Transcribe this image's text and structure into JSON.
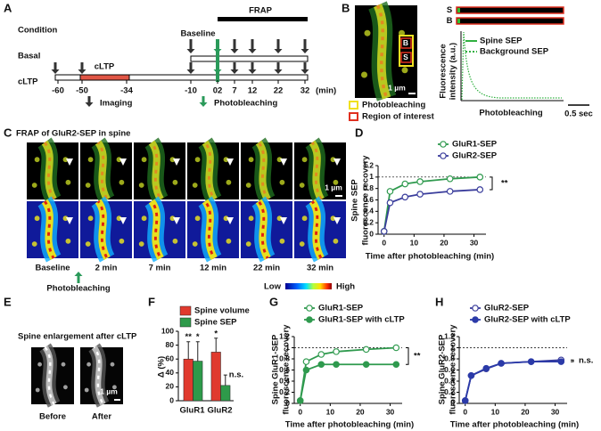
{
  "panel_labels": [
    "A",
    "B",
    "C",
    "D",
    "E",
    "F",
    "G",
    "H"
  ],
  "timeline": {
    "row_labels": [
      "Condition",
      "Basal",
      "cLTP"
    ],
    "baseline": "Baseline",
    "frap": "FRAP",
    "treatment": "cLTP",
    "ticks": [
      "-60",
      "-50",
      "-34",
      "-10",
      "02",
      "7",
      "12",
      "22",
      "32"
    ],
    "unit": "(min)",
    "legend": [
      "Imaging",
      "Photobleaching"
    ]
  },
  "panel_b": {
    "roi_labels": [
      "B",
      "S"
    ],
    "scale": "1 µm",
    "legend": [
      "Photobleaching",
      "Region of interest"
    ],
    "kymo_labels": [
      "S",
      "B"
    ],
    "trace": {
      "y_label": [
        "Fluorescence",
        "intensity (a.u.)"
      ],
      "legend": [
        "Spine SEP",
        "Background SEP"
      ],
      "x_label": "Photobleaching",
      "scale": "0.5 sec"
    }
  },
  "panel_c": {
    "title": "FRAP of GluR2-SEP in spine",
    "times": [
      "Baseline",
      "2 min",
      "7 min",
      "12 min",
      "22 min",
      "32 min"
    ],
    "event": "Photobleaching",
    "scale": "1 µm",
    "colorbar": [
      "Low",
      "High"
    ]
  },
  "panel_e": {
    "title": "Spine enlargement after cLTP",
    "labels": [
      "Before",
      "After"
    ],
    "scale": "1 µm"
  },
  "chart_data": [
    {
      "type": "line",
      "y_label": [
        "Spine SEP",
        "fluorescence recovery"
      ],
      "x_label": "Time after photobleaching (min)",
      "x": [
        0,
        2,
        7,
        12,
        22,
        32
      ],
      "xlim": [
        -2,
        34
      ],
      "xticks": [
        0,
        10,
        20,
        30
      ],
      "ylim": [
        0,
        1.2
      ],
      "yticks": [
        0,
        0.2,
        0.4,
        0.6,
        0.8,
        1,
        1.2
      ],
      "reference_line": 1,
      "annotation": "**",
      "series": [
        {
          "name": "GluR1-SEP",
          "color": "#2f9a4e",
          "marker": "open",
          "values": [
            0.05,
            0.75,
            0.88,
            0.92,
            0.97,
            1.0
          ]
        },
        {
          "name": "GluR2-SEP",
          "color": "#3a3d9c",
          "marker": "open",
          "values": [
            0.05,
            0.55,
            0.65,
            0.7,
            0.75,
            0.78
          ]
        }
      ]
    },
    {
      "type": "bar",
      "y_label": "Δ (%)",
      "categories": [
        "GluR1",
        "GluR2"
      ],
      "ylim": [
        0,
        100
      ],
      "yticks": [
        0,
        20,
        40,
        60,
        80,
        100
      ],
      "series": [
        {
          "name": "Spine volume",
          "color": "#e03a2e",
          "values": [
            60,
            70
          ],
          "errors": [
            25,
            20
          ],
          "annotations": [
            "**",
            "*"
          ]
        },
        {
          "name": "Spine SEP",
          "color": "#2e9a4a",
          "values": [
            57,
            22
          ],
          "errors": [
            28,
            15
          ],
          "annotations": [
            "*",
            "n.s."
          ]
        }
      ]
    },
    {
      "type": "line",
      "y_label": [
        "Spine GluR1-SEP",
        "fluorescence recovery"
      ],
      "x_label": "Time after photobleaching (min)",
      "x": [
        0,
        2,
        7,
        12,
        22,
        32
      ],
      "xlim": [
        -2,
        34
      ],
      "xticks": [
        0,
        10,
        20,
        30
      ],
      "ylim": [
        0,
        1.2
      ],
      "yticks": [
        0,
        0.2,
        0.4,
        0.6,
        0.8,
        1,
        1.2
      ],
      "reference_line": 1,
      "annotation": "**",
      "series": [
        {
          "name": "GluR1-SEP",
          "color": "#2f9a4e",
          "marker": "open",
          "values": [
            0.05,
            0.75,
            0.88,
            0.93,
            0.97,
            1.0
          ]
        },
        {
          "name": "GluR1-SEP with cLTP",
          "color": "#2f9a4e",
          "marker": "filled",
          "values": [
            0.05,
            0.6,
            0.7,
            0.7,
            0.7,
            0.7
          ]
        }
      ]
    },
    {
      "type": "line",
      "y_label": [
        "Spine GluR2-SEP",
        "fluorescence recovery"
      ],
      "x_label": "Time after photobleaching (min)",
      "x": [
        0,
        2,
        7,
        12,
        22,
        32
      ],
      "xlim": [
        -2,
        34
      ],
      "xticks": [
        0,
        10,
        20,
        30
      ],
      "ylim": [
        0,
        1.2
      ],
      "yticks": [
        0,
        0.2,
        0.4,
        0.6,
        0.8,
        1,
        1.2
      ],
      "reference_line": 1,
      "annotation": "n.s.",
      "series": [
        {
          "name": "GluR2-SEP",
          "color": "#3a3d9c",
          "marker": "open",
          "values": [
            0.05,
            0.5,
            0.62,
            0.72,
            0.75,
            0.78
          ]
        },
        {
          "name": "GluR2-SEP with cLTP",
          "color": "#2b3aa8",
          "marker": "filled",
          "values": [
            0.05,
            0.5,
            0.63,
            0.72,
            0.75,
            0.75
          ]
        }
      ]
    }
  ]
}
